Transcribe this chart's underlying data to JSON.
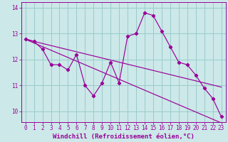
{
  "xlabel": "Windchill (Refroidissement éolien,°C)",
  "background_color": "#cce8e8",
  "grid_color": "#99cccc",
  "line_color": "#990099",
  "x_hours": [
    0,
    1,
    2,
    3,
    4,
    5,
    6,
    7,
    8,
    9,
    10,
    11,
    12,
    13,
    14,
    15,
    16,
    17,
    18,
    19,
    20,
    21,
    22,
    23
  ],
  "windchill": [
    12.8,
    12.7,
    12.4,
    11.8,
    11.8,
    11.6,
    12.2,
    11.0,
    10.6,
    11.1,
    11.9,
    11.1,
    12.9,
    13.0,
    13.8,
    13.7,
    13.1,
    12.5,
    11.9,
    11.8,
    11.4,
    10.9,
    10.5,
    9.8
  ],
  "upper_line": [
    12.78,
    12.64,
    12.5,
    12.36,
    12.22,
    12.08,
    11.94,
    11.8,
    11.66,
    11.52,
    11.38,
    11.24,
    11.1,
    10.96,
    10.82,
    10.68,
    10.54,
    10.4,
    10.26,
    10.12,
    9.98,
    9.84,
    9.7,
    9.56
  ],
  "lower_line": [
    12.78,
    12.7,
    12.62,
    12.54,
    12.46,
    12.38,
    12.3,
    12.22,
    12.14,
    12.06,
    11.98,
    11.9,
    11.82,
    11.74,
    11.66,
    11.58,
    11.5,
    11.42,
    11.34,
    11.26,
    11.18,
    11.1,
    11.02,
    10.94
  ],
  "ylim": [
    9.6,
    14.2
  ],
  "xlim": [
    -0.5,
    23.5
  ],
  "yticks": [
    10,
    11,
    12,
    13,
    14
  ],
  "tick_fontsize": 5.5,
  "label_fontsize": 6.5
}
